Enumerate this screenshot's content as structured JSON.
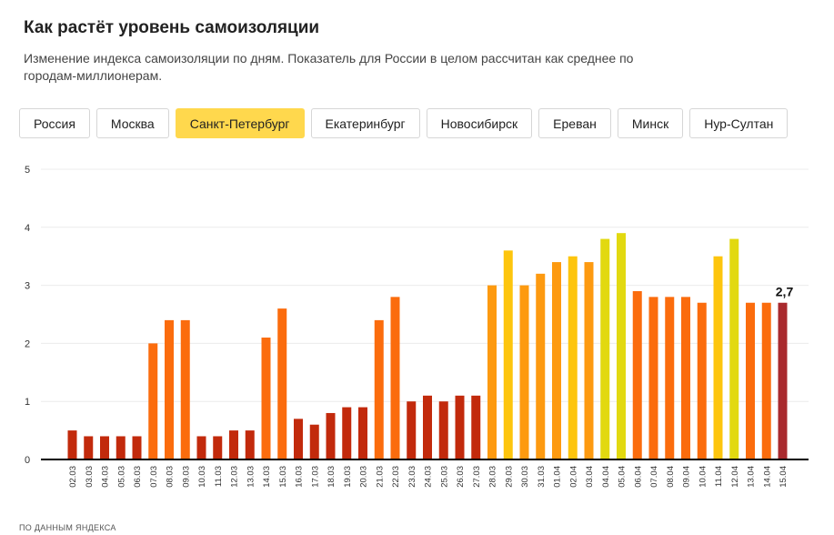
{
  "title": "Как растёт уровень самоизоляции",
  "subtitle": "Изменение индекса самоизоляции по дням. Показатель для России в целом рассчитан как среднее по городам-миллионерам.",
  "tabs": [
    {
      "label": "Россия",
      "active": false
    },
    {
      "label": "Москва",
      "active": false
    },
    {
      "label": "Санкт-Петербург",
      "active": true
    },
    {
      "label": "Екатеринбург",
      "active": false
    },
    {
      "label": "Новосибирск",
      "active": false
    },
    {
      "label": "Ереван",
      "active": false
    },
    {
      "label": "Минск",
      "active": false
    },
    {
      "label": "Нур-Султан",
      "active": false
    }
  ],
  "source": "ПО ДАННЫМ ЯНДЕКСА",
  "colors": {
    "level_0": "#c22a0c",
    "level_2": "#fb6c0d",
    "level_3": "#fd9a10",
    "level_35": "#fdc50d",
    "level_4": "#e2d910",
    "last": "#a92a2e",
    "active_tab": "#ffd84d",
    "grid": "#ececec",
    "axis": "#000000"
  },
  "chart_data": {
    "type": "bar",
    "categories": [
      "02.03",
      "03.03",
      "04.03",
      "05.03",
      "06.03",
      "07.03",
      "08.03",
      "09.03",
      "10.03",
      "11.03",
      "12.03",
      "13.03",
      "14.03",
      "15.03",
      "16.03",
      "17.03",
      "18.03",
      "19.03",
      "20.03",
      "21.03",
      "22.03",
      "23.03",
      "24.03",
      "25.03",
      "26.03",
      "27.03",
      "28.03",
      "29.03",
      "30.03",
      "31.03",
      "01.04",
      "02.04",
      "03.04",
      "04.04",
      "05.04",
      "06.04",
      "07.04",
      "08.04",
      "09.04",
      "10.04",
      "11.04",
      "12.04",
      "13.04",
      "14.04",
      "15.04"
    ],
    "values": [
      0.5,
      0.4,
      0.4,
      0.4,
      0.4,
      2.0,
      2.4,
      2.4,
      0.4,
      0.4,
      0.5,
      0.5,
      2.1,
      2.6,
      0.7,
      0.6,
      0.8,
      0.9,
      0.9,
      2.4,
      2.8,
      1.0,
      1.1,
      1.0,
      1.1,
      1.1,
      3.0,
      3.6,
      3.0,
      3.2,
      3.4,
      3.5,
      3.4,
      3.8,
      3.9,
      2.9,
      2.8,
      2.8,
      2.8,
      2.7,
      3.5,
      3.8,
      2.7,
      2.7,
      2.7
    ],
    "ylim": [
      0,
      5
    ],
    "yticks": [
      "0",
      "1",
      "2",
      "3",
      "4",
      "5"
    ],
    "grid": true,
    "last_value_label": "2,7"
  }
}
